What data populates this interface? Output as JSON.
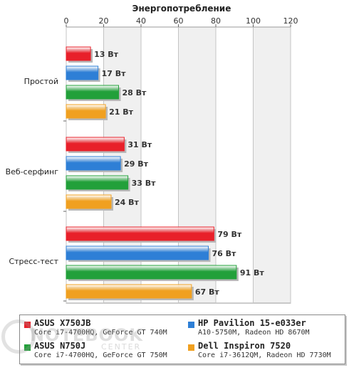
{
  "chart_data": {
    "type": "bar",
    "orientation": "horizontal",
    "title": "Энергопотребление",
    "xlim": [
      0,
      120
    ],
    "xticks": [
      0,
      20,
      40,
      60,
      80,
      100,
      120
    ],
    "grid": true,
    "categories": [
      "Простой",
      "Веб-серфинг",
      "Стресс-тест"
    ],
    "unit": "Вт",
    "series": [
      {
        "name": "ASUS X750JB",
        "spec": "Core i7-4700HQ, GeForce GT 740M",
        "color": "#e8202a",
        "values": [
          13,
          31,
          79
        ]
      },
      {
        "name": "HP Pavilion 15-e033er",
        "spec": "A10-5750M, Radeon HD 8670M",
        "color": "#2e7fd6",
        "values": [
          17,
          29,
          76
        ]
      },
      {
        "name": "ASUS N750J",
        "spec": "Core i7-4700HQ, GeForce GT 750M",
        "color": "#22a03a",
        "values": [
          28,
          33,
          91
        ]
      },
      {
        "name": "Dell Inspiron 7520",
        "spec": "Core i7-3612QM, Radeon HD 7730M",
        "color": "#f0a020",
        "values": [
          21,
          24,
          67
        ]
      }
    ],
    "legend_position": "bottom"
  },
  "watermark": {
    "text": "NOTEBOOK",
    "sub": "CENTER"
  }
}
